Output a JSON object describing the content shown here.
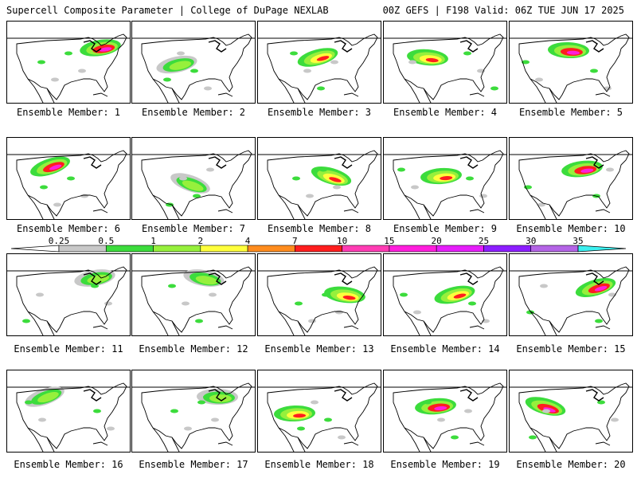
{
  "header": {
    "left": "Supercell Composite Parameter | College of DuPage NEXLAB",
    "right": "00Z GEFS | F198 Valid: 06Z TUE JUN 17 2025"
  },
  "members": [
    {
      "label": "Ensemble Member: 1"
    },
    {
      "label": "Ensemble Member: 2"
    },
    {
      "label": "Ensemble Member: 3"
    },
    {
      "label": "Ensemble Member: 4"
    },
    {
      "label": "Ensemble Member: 5"
    },
    {
      "label": "Ensemble Member: 6"
    },
    {
      "label": "Ensemble Member: 7"
    },
    {
      "label": "Ensemble Member: 8"
    },
    {
      "label": "Ensemble Member: 9"
    },
    {
      "label": "Ensemble Member: 10"
    },
    {
      "label": "Ensemble Member: 11"
    },
    {
      "label": "Ensemble Member: 12"
    },
    {
      "label": "Ensemble Member: 13"
    },
    {
      "label": "Ensemble Member: 14"
    },
    {
      "label": "Ensemble Member: 15"
    },
    {
      "label": "Ensemble Member: 16"
    },
    {
      "label": "Ensemble Member: 17"
    },
    {
      "label": "Ensemble Member: 18"
    },
    {
      "label": "Ensemble Member: 19"
    },
    {
      "label": "Ensemble Member: 20"
    }
  ],
  "colorbar": {
    "ticks": [
      "0.25",
      "0.5",
      "1",
      "2",
      "4",
      "7",
      "10",
      "15",
      "20",
      "25",
      "30",
      "35"
    ],
    "colors": [
      "#c8c8c8",
      "#3cdc3c",
      "#96f03c",
      "#ffff3c",
      "#ff8c1e",
      "#ff1e1e",
      "#ff3cb4",
      "#ff1edc",
      "#e61efa",
      "#8c1eff",
      "#b464e6",
      "#3cf0f0"
    ]
  }
}
